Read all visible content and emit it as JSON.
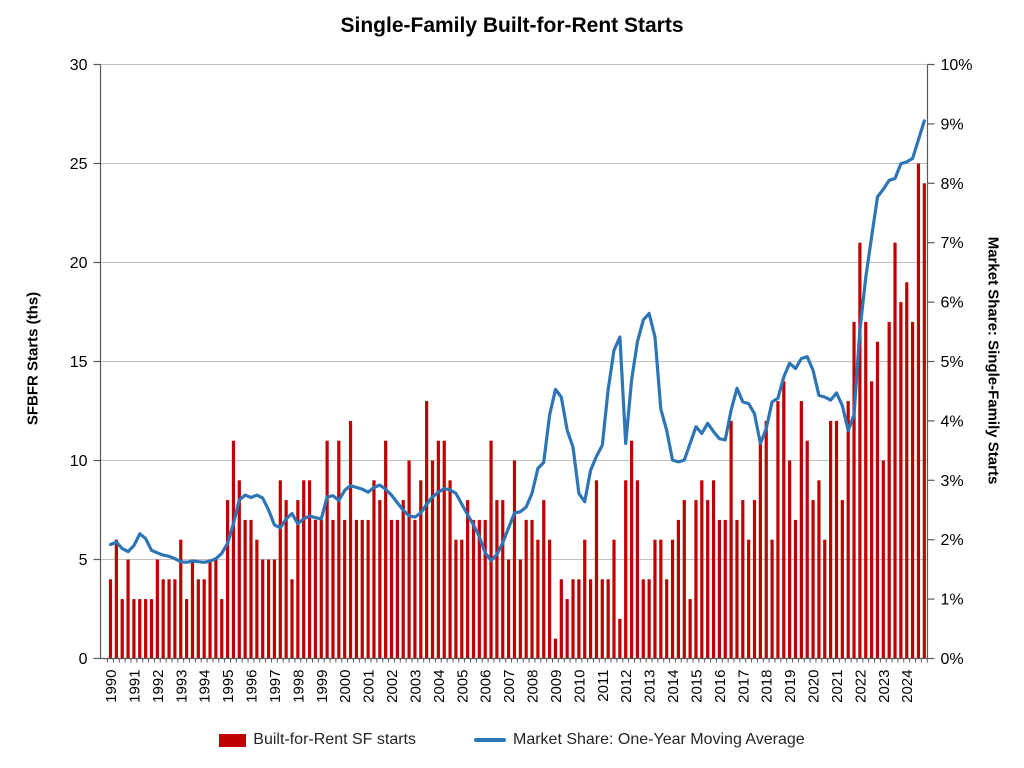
{
  "title": "Single-Family Built-for-Rent Starts",
  "left_axis": {
    "title": "SFBFR Starts (ths)",
    "ticks": [
      0,
      5,
      10,
      15,
      20,
      25,
      30
    ]
  },
  "right_axis": {
    "title": "Market Share: Single-Family Starts",
    "ticks": [
      "0%",
      "1%",
      "2%",
      "3%",
      "4%",
      "5%",
      "6%",
      "7%",
      "8%",
      "9%",
      "10%"
    ]
  },
  "legend": [
    {
      "label": "Built-for-Rent SF starts",
      "color": "#C00000",
      "type": "bar"
    },
    {
      "label": "Market Share: One-Year Moving Average",
      "color": "#2E75B6",
      "type": "line"
    }
  ],
  "colors": {
    "bar": "#C00000",
    "line": "#2E75B6",
    "gridline": "#BFBFBF",
    "axis": "#595959",
    "text": "#000000"
  },
  "chart_data": {
    "type": "bar",
    "subtype": "combo-bar-line-quarterly",
    "title": "Single-Family Built-for-Rent Starts",
    "xlabel": "",
    "ylabel_left": "SFBFR Starts (ths)",
    "ylabel_right": "Market Share: Single-Family Starts",
    "ylim_left": [
      0,
      30
    ],
    "ylim_right_percent": [
      0,
      10
    ],
    "grid": true,
    "legend_position": "bottom",
    "x_years": [
      1990,
      1991,
      1992,
      1993,
      1994,
      1995,
      1996,
      1997,
      1998,
      1999,
      2000,
      2001,
      2002,
      2003,
      2004,
      2005,
      2006,
      2007,
      2008,
      2009,
      2010,
      2011,
      2012,
      2013,
      2014,
      2015,
      2016,
      2017,
      2018,
      2019,
      2020,
      2021,
      2022,
      2023,
      2024
    ],
    "quarters_per_year": 4,
    "series": [
      {
        "name": "Built-for-Rent SF starts",
        "type": "bar",
        "axis": "left",
        "units": "thousands of starts",
        "color": "#C00000",
        "values": [
          4,
          6,
          3,
          5,
          3,
          3,
          3,
          3,
          5,
          4,
          4,
          4,
          6,
          3,
          5,
          4,
          4,
          5,
          5,
          3,
          8,
          11,
          9,
          7,
          7,
          6,
          5,
          5,
          5,
          9,
          8,
          4,
          8,
          9,
          9,
          7,
          7,
          11,
          7,
          11,
          7,
          12,
          7,
          7,
          7,
          9,
          8,
          11,
          7,
          7,
          8,
          10,
          7,
          9,
          13,
          10,
          11,
          11,
          9,
          6,
          6,
          8,
          7,
          7,
          7,
          11,
          8,
          8,
          5,
          10,
          5,
          7,
          7,
          6,
          8,
          6,
          1,
          4,
          3,
          4,
          4,
          6,
          4,
          9,
          4,
          4,
          6,
          2,
          9,
          11,
          9,
          4,
          4,
          6,
          6,
          4,
          6,
          7,
          8,
          3,
          8,
          9,
          8,
          9,
          7,
          7,
          12,
          7,
          8,
          6,
          8,
          11,
          12,
          6,
          13,
          14,
          10,
          7,
          13,
          11,
          8,
          9,
          6,
          12,
          12,
          8,
          13,
          17,
          21,
          17,
          14,
          16,
          10,
          17,
          21,
          18,
          19,
          17,
          25,
          24
        ]
      },
      {
        "name": "Market Share: One-Year Moving Average",
        "type": "line",
        "axis": "right",
        "units": "percent",
        "color": "#2E75B6",
        "values": [
          1.92,
          1.96,
          1.85,
          1.8,
          1.9,
          2.1,
          2.02,
          1.82,
          1.78,
          1.74,
          1.72,
          1.68,
          1.63,
          1.62,
          1.64,
          1.63,
          1.62,
          1.64,
          1.68,
          1.77,
          1.94,
          2.27,
          2.67,
          2.75,
          2.71,
          2.75,
          2.7,
          2.5,
          2.25,
          2.2,
          2.35,
          2.44,
          2.27,
          2.35,
          2.4,
          2.37,
          2.35,
          2.72,
          2.74,
          2.66,
          2.83,
          2.91,
          2.88,
          2.85,
          2.8,
          2.88,
          2.92,
          2.85,
          2.75,
          2.62,
          2.5,
          2.4,
          2.38,
          2.45,
          2.6,
          2.72,
          2.8,
          2.86,
          2.84,
          2.78,
          2.6,
          2.42,
          2.25,
          2.05,
          1.78,
          1.65,
          1.75,
          1.95,
          2.2,
          2.45,
          2.47,
          2.55,
          2.78,
          3.2,
          3.3,
          4.1,
          4.53,
          4.4,
          3.84,
          3.56,
          2.78,
          2.64,
          3.17,
          3.4,
          3.59,
          4.52,
          5.19,
          5.41,
          3.62,
          4.69,
          5.33,
          5.7,
          5.81,
          5.41,
          4.2,
          3.84,
          3.34,
          3.31,
          3.34,
          3.62,
          3.9,
          3.79,
          3.96,
          3.82,
          3.7,
          3.68,
          4.18,
          4.55,
          4.32,
          4.29,
          4.12,
          3.62,
          3.87,
          4.32,
          4.38,
          4.74,
          4.97,
          4.88,
          5.05,
          5.08,
          4.85,
          4.43,
          4.4,
          4.35,
          4.47,
          4.26,
          3.84,
          4.1,
          5.53,
          6.42,
          7.1,
          7.77,
          7.9,
          8.05,
          8.08,
          8.33,
          8.36,
          8.42,
          8.73,
          9.05
        ]
      }
    ]
  }
}
